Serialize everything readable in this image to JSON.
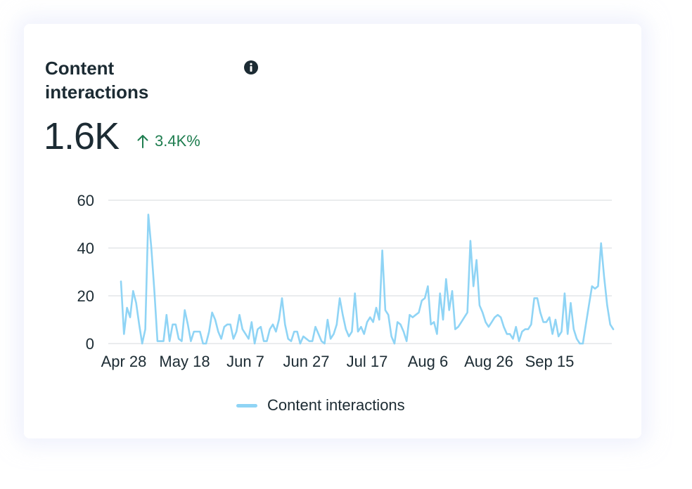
{
  "card": {
    "title": "Content interactions",
    "metric_value": "1.6K",
    "change_text": "3.4K%",
    "info_icon": "info-icon",
    "change_icon": "arrow-up-icon"
  },
  "colors": {
    "line": "#8fd4f5",
    "grid": "#e3e5e8",
    "positive": "#1e7d4f",
    "text": "#1c2b33"
  },
  "chart_data": {
    "type": "line",
    "title": "",
    "xlabel": "",
    "ylabel": "",
    "ylim": [
      0,
      60
    ],
    "yticks": [
      0,
      20,
      40,
      60
    ],
    "xtick_labels": [
      "Apr 28",
      "May 18",
      "Jun 7",
      "Jun 27",
      "Jul 17",
      "Aug 6",
      "Aug 26",
      "Sep 15"
    ],
    "x_start": "Apr 28",
    "grid": true,
    "legend_position": "bottom",
    "series": [
      {
        "name": "Content interactions",
        "values": [
          26,
          4,
          15,
          11,
          22,
          17,
          8,
          0,
          6,
          54,
          40,
          22,
          1,
          1,
          1,
          12,
          1,
          8,
          8,
          2,
          1,
          14,
          8,
          1,
          5,
          5,
          5,
          0,
          0,
          5,
          13,
          10,
          5,
          2,
          7,
          8,
          8,
          2,
          5,
          12,
          6,
          4,
          2,
          9,
          0,
          6,
          7,
          1,
          1,
          6,
          8,
          5,
          10,
          19,
          8,
          2,
          1,
          5,
          5,
          0,
          3,
          2,
          1,
          1,
          7,
          4,
          1,
          0,
          10,
          2,
          4,
          8,
          19,
          12,
          6,
          3,
          5,
          21,
          5,
          7,
          4,
          9,
          11,
          9,
          15,
          10,
          39,
          14,
          12,
          3,
          0,
          9,
          8,
          5,
          1,
          12,
          11,
          12,
          13,
          18,
          19,
          24,
          8,
          9,
          4,
          21,
          10,
          27,
          14,
          22,
          6,
          7,
          9,
          11,
          13,
          43,
          24,
          35,
          16,
          13,
          9,
          7,
          9,
          11,
          12,
          11,
          7,
          4,
          4,
          2,
          7,
          1,
          5,
          6,
          6,
          8,
          19,
          19,
          13,
          9,
          9,
          11,
          4,
          10,
          3,
          5,
          21,
          4,
          17,
          6,
          2,
          0,
          0,
          8,
          16,
          24,
          23,
          24,
          42,
          28,
          16,
          8,
          6
        ]
      }
    ]
  }
}
